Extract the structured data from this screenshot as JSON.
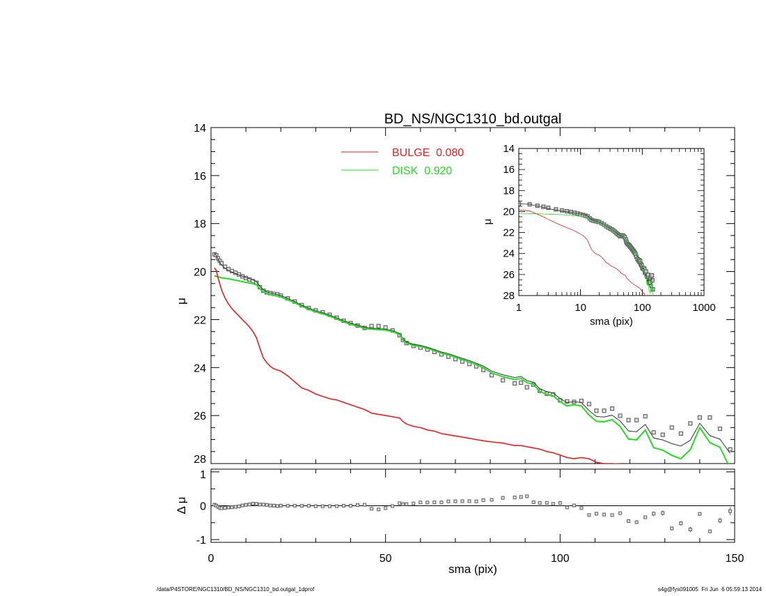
{
  "chart_data": {
    "type": "line",
    "title": "BD_NS/NGC1310_bd.outgal",
    "xlabel": "sma (pix)",
    "ylabel": "μ",
    "residual_ylabel": "Δ μ",
    "xlim": [
      0,
      150
    ],
    "ylim": [
      14,
      28
    ],
    "residual_ylim": [
      -1.08,
      1.08
    ],
    "x_ticks": [
      0,
      50,
      100,
      150
    ],
    "y_ticks": [
      14,
      16,
      18,
      20,
      22,
      24,
      26,
      28
    ],
    "residual_ticks": [
      1,
      0,
      -1
    ],
    "legend": [
      {
        "label": "BULGE  0.080",
        "color": "#ee1c1c"
      },
      {
        "label": "DISK  0.920",
        "color": "#1ee01e"
      }
    ],
    "legend_position": "top-center",
    "inset": {
      "xlabel": "sma (pix)",
      "ylabel": "μ",
      "xscale": "log",
      "xlim": [
        1,
        1000
      ],
      "ylim": [
        14,
        28
      ],
      "x_ticks": [
        1,
        10,
        100,
        1000
      ],
      "y_ticks": [
        14,
        16,
        18,
        20,
        22,
        24,
        26,
        28
      ]
    },
    "x": [
      1.0,
      1.5,
      2,
      2.5,
      3,
      4,
      5,
      6,
      7,
      8,
      9,
      10,
      11,
      12,
      13,
      14,
      15,
      16,
      17,
      18,
      19,
      20,
      22,
      24,
      26,
      28,
      30,
      32,
      34,
      36,
      38,
      40,
      42,
      44,
      46,
      48,
      50,
      52,
      54,
      55,
      56,
      58,
      60,
      62,
      64,
      66,
      68,
      70,
      72,
      74,
      76,
      78,
      80.4,
      83.6,
      87.0,
      88.8,
      90.5,
      92.4,
      94.2,
      96.2,
      98.0,
      100.0,
      102.0,
      104.0,
      106.1,
      108.3,
      110.4,
      112.6,
      114.9,
      117.2,
      119.6,
      121.9,
      124.4,
      126.8,
      129.4,
      132.0,
      134.6,
      137.3,
      140.0,
      142.9,
      145.8,
      148.7
    ],
    "observed": [
      19.28,
      19.32,
      19.45,
      19.55,
      19.65,
      19.8,
      19.9,
      19.98,
      20.05,
      20.12,
      20.2,
      20.27,
      20.33,
      20.4,
      20.47,
      20.65,
      20.8,
      20.87,
      20.9,
      20.93,
      20.95,
      21.0,
      21.12,
      21.25,
      21.4,
      21.52,
      21.62,
      21.7,
      21.8,
      21.92,
      22.05,
      22.15,
      22.25,
      22.35,
      22.27,
      22.27,
      22.33,
      22.45,
      22.65,
      22.85,
      22.98,
      23.1,
      23.17,
      23.25,
      23.35,
      23.45,
      23.55,
      23.65,
      23.75,
      23.85,
      23.95,
      24.1,
      24.32,
      24.53,
      24.66,
      24.63,
      24.82,
      24.71,
      24.97,
      25.09,
      25.12,
      25.37,
      25.41,
      25.43,
      25.39,
      25.52,
      25.8,
      25.8,
      25.71,
      26.01,
      26.19,
      26.19,
      26.03,
      26.7,
      26.8,
      26.5,
      26.75,
      26.33,
      26.08,
      26.08,
      26.55,
      27.41
    ],
    "observed_err": [
      0,
      0,
      0,
      0,
      0,
      0,
      0,
      0,
      0,
      0,
      0,
      0,
      0,
      0,
      0,
      0,
      0,
      0,
      0,
      0,
      0,
      0,
      0,
      0,
      0,
      0,
      0,
      0,
      0,
      0,
      0,
      0,
      0,
      0,
      0,
      0,
      0,
      0,
      0,
      0,
      0,
      0,
      0,
      0,
      0,
      0,
      0,
      0,
      0,
      0,
      0,
      0,
      0,
      0,
      0,
      0,
      0,
      0,
      0,
      0,
      0,
      0,
      0,
      0,
      0,
      0.02,
      0.03,
      0.03,
      0.03,
      0.04,
      0.05,
      0.05,
      0.05,
      0.07,
      0.08,
      0.06,
      0.07,
      0.08,
      0.05,
      0.05,
      0.08,
      0.12
    ],
    "bulge": [
      19.85,
      19.95,
      20.25,
      20.5,
      20.75,
      21.1,
      21.35,
      21.55,
      21.7,
      21.85,
      22.0,
      22.15,
      22.3,
      22.5,
      22.75,
      23.2,
      23.6,
      23.8,
      23.95,
      24.05,
      24.1,
      24.15,
      24.35,
      24.6,
      24.85,
      24.95,
      25.1,
      25.2,
      25.3,
      25.35,
      25.45,
      25.55,
      25.65,
      25.75,
      25.9,
      25.95,
      26.0,
      26.05,
      26.1,
      26.25,
      26.35,
      26.45,
      26.5,
      26.6,
      26.65,
      26.75,
      26.8,
      26.85,
      26.9,
      26.95,
      27.0,
      27.05,
      27.1,
      27.15,
      27.25,
      27.25,
      27.3,
      27.35,
      27.4,
      27.5,
      27.55,
      27.65,
      27.75,
      27.8,
      27.75,
      27.8,
      27.95,
      28.0,
      28.0,
      28.02,
      28.08,
      28.12,
      28.17,
      28.2,
      28.24,
      28.27,
      28.3,
      28.33,
      28.36,
      28.4,
      28.43,
      28.46
    ],
    "disk": [
      20.18,
      20.2,
      20.22,
      20.24,
      20.26,
      20.28,
      20.3,
      20.33,
      20.36,
      20.39,
      20.42,
      20.45,
      20.48,
      20.5,
      20.55,
      20.72,
      20.85,
      20.92,
      20.96,
      20.99,
      21.02,
      21.06,
      21.18,
      21.3,
      21.45,
      21.57,
      21.68,
      21.76,
      21.86,
      21.98,
      22.1,
      22.2,
      22.28,
      22.37,
      22.4,
      22.42,
      22.44,
      22.5,
      22.62,
      22.85,
      22.98,
      23.08,
      23.12,
      23.2,
      23.3,
      23.4,
      23.47,
      23.57,
      23.67,
      23.77,
      23.88,
      24.0,
      24.22,
      24.38,
      24.5,
      24.45,
      24.63,
      24.7,
      25.0,
      25.12,
      25.18,
      25.42,
      25.6,
      25.55,
      25.6,
      25.98,
      26.24,
      26.26,
      26.17,
      26.46,
      26.98,
      27.01,
      26.6,
      27.34,
      27.44,
      27.66,
      27.8,
      27.42,
      26.5,
      27.13,
      27.32,
      28.2
    ]
  },
  "footer": {
    "path": "/data/P4STORE/NGC1310/BD_NS/NGC1310_bd.outgal_1dprof",
    "stamp": "s4g@fys091005  Fri Jun  6 05:59:13 2014"
  },
  "colors": {
    "bulge": "#ee1c1c",
    "disk": "#1ee01e",
    "total": "#333333",
    "points": "#666666"
  }
}
